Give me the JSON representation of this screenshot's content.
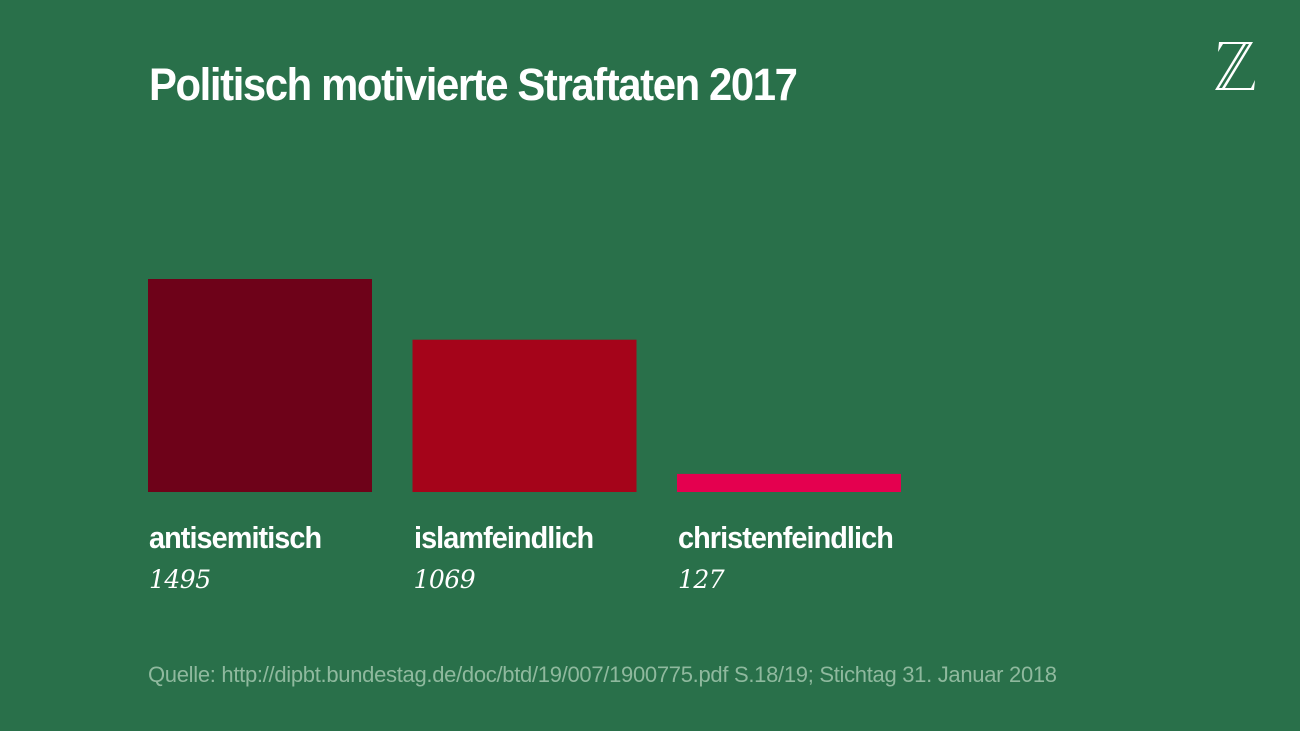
{
  "title": "Politisch motivierte Straftaten 2017",
  "logo": {
    "icon": "zeit-z-logo-icon",
    "glyph": "Z"
  },
  "source": "Quelle: http://dipbt.bundestag.de/doc/btd/19/007/1900775.pdf S.18/19; Stichtag 31. Januar 2018",
  "colors": {
    "background": "#29704a",
    "text": "#ffffff",
    "source_text": "#8fb99e"
  },
  "chart_data": {
    "type": "bar",
    "title": "Politisch motivierte Straftaten 2017",
    "xlabel": "",
    "ylabel": "",
    "categories": [
      "antisemitisch",
      "islamfeindlich",
      "christenfeindlich"
    ],
    "values": [
      1495,
      1069,
      127
    ],
    "value_labels": [
      "1495",
      "1069",
      "127"
    ],
    "bar_colors": [
      "#6e0219",
      "#a5041a",
      "#e4004f"
    ],
    "ylim": [
      0,
      1495
    ],
    "grid": false,
    "legend": "none"
  }
}
